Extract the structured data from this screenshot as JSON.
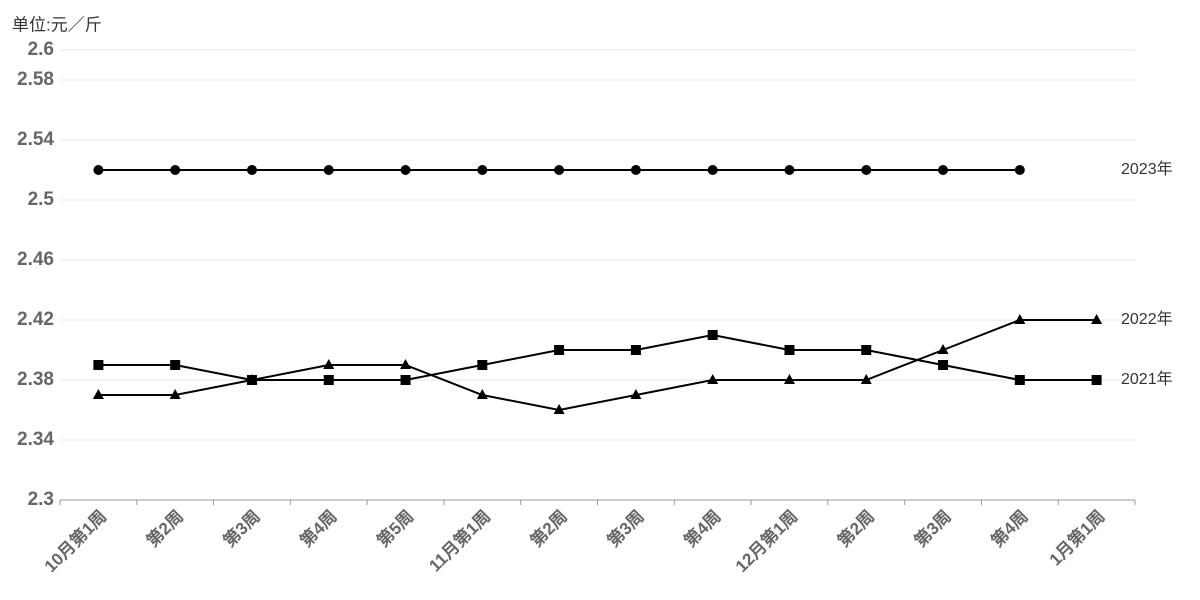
{
  "chart_data": {
    "type": "line",
    "unit_label": "单位:元／斤",
    "categories": [
      "10月第1周",
      "第2周",
      "第3周",
      "第4周",
      "第5周",
      "11月第1周",
      "第2周",
      "第3周",
      "第4周",
      "12月第1周",
      "第2周",
      "第3周",
      "第4周",
      "1月第1周"
    ],
    "series": [
      {
        "name": "2023年",
        "color": "#000000",
        "marker": "circle",
        "values": [
          2.52,
          2.52,
          2.52,
          2.52,
          2.52,
          2.52,
          2.52,
          2.52,
          2.52,
          2.52,
          2.52,
          2.52,
          2.52,
          null
        ]
      },
      {
        "name": "2022年",
        "color": "#000000",
        "marker": "triangle",
        "values": [
          2.37,
          2.37,
          2.38,
          2.39,
          2.39,
          2.37,
          2.36,
          2.37,
          2.38,
          2.38,
          2.38,
          2.4,
          2.42,
          2.42
        ]
      },
      {
        "name": "2021年",
        "color": "#000000",
        "marker": "square",
        "values": [
          2.39,
          2.39,
          2.38,
          2.38,
          2.38,
          2.39,
          2.4,
          2.4,
          2.41,
          2.4,
          2.4,
          2.39,
          2.38,
          2.38
        ]
      }
    ],
    "ylim": [
      2.3,
      2.6
    ],
    "yticks": [
      2.3,
      2.34,
      2.38,
      2.42,
      2.46,
      2.5,
      2.54,
      2.58,
      2.6
    ],
    "grid": true
  }
}
